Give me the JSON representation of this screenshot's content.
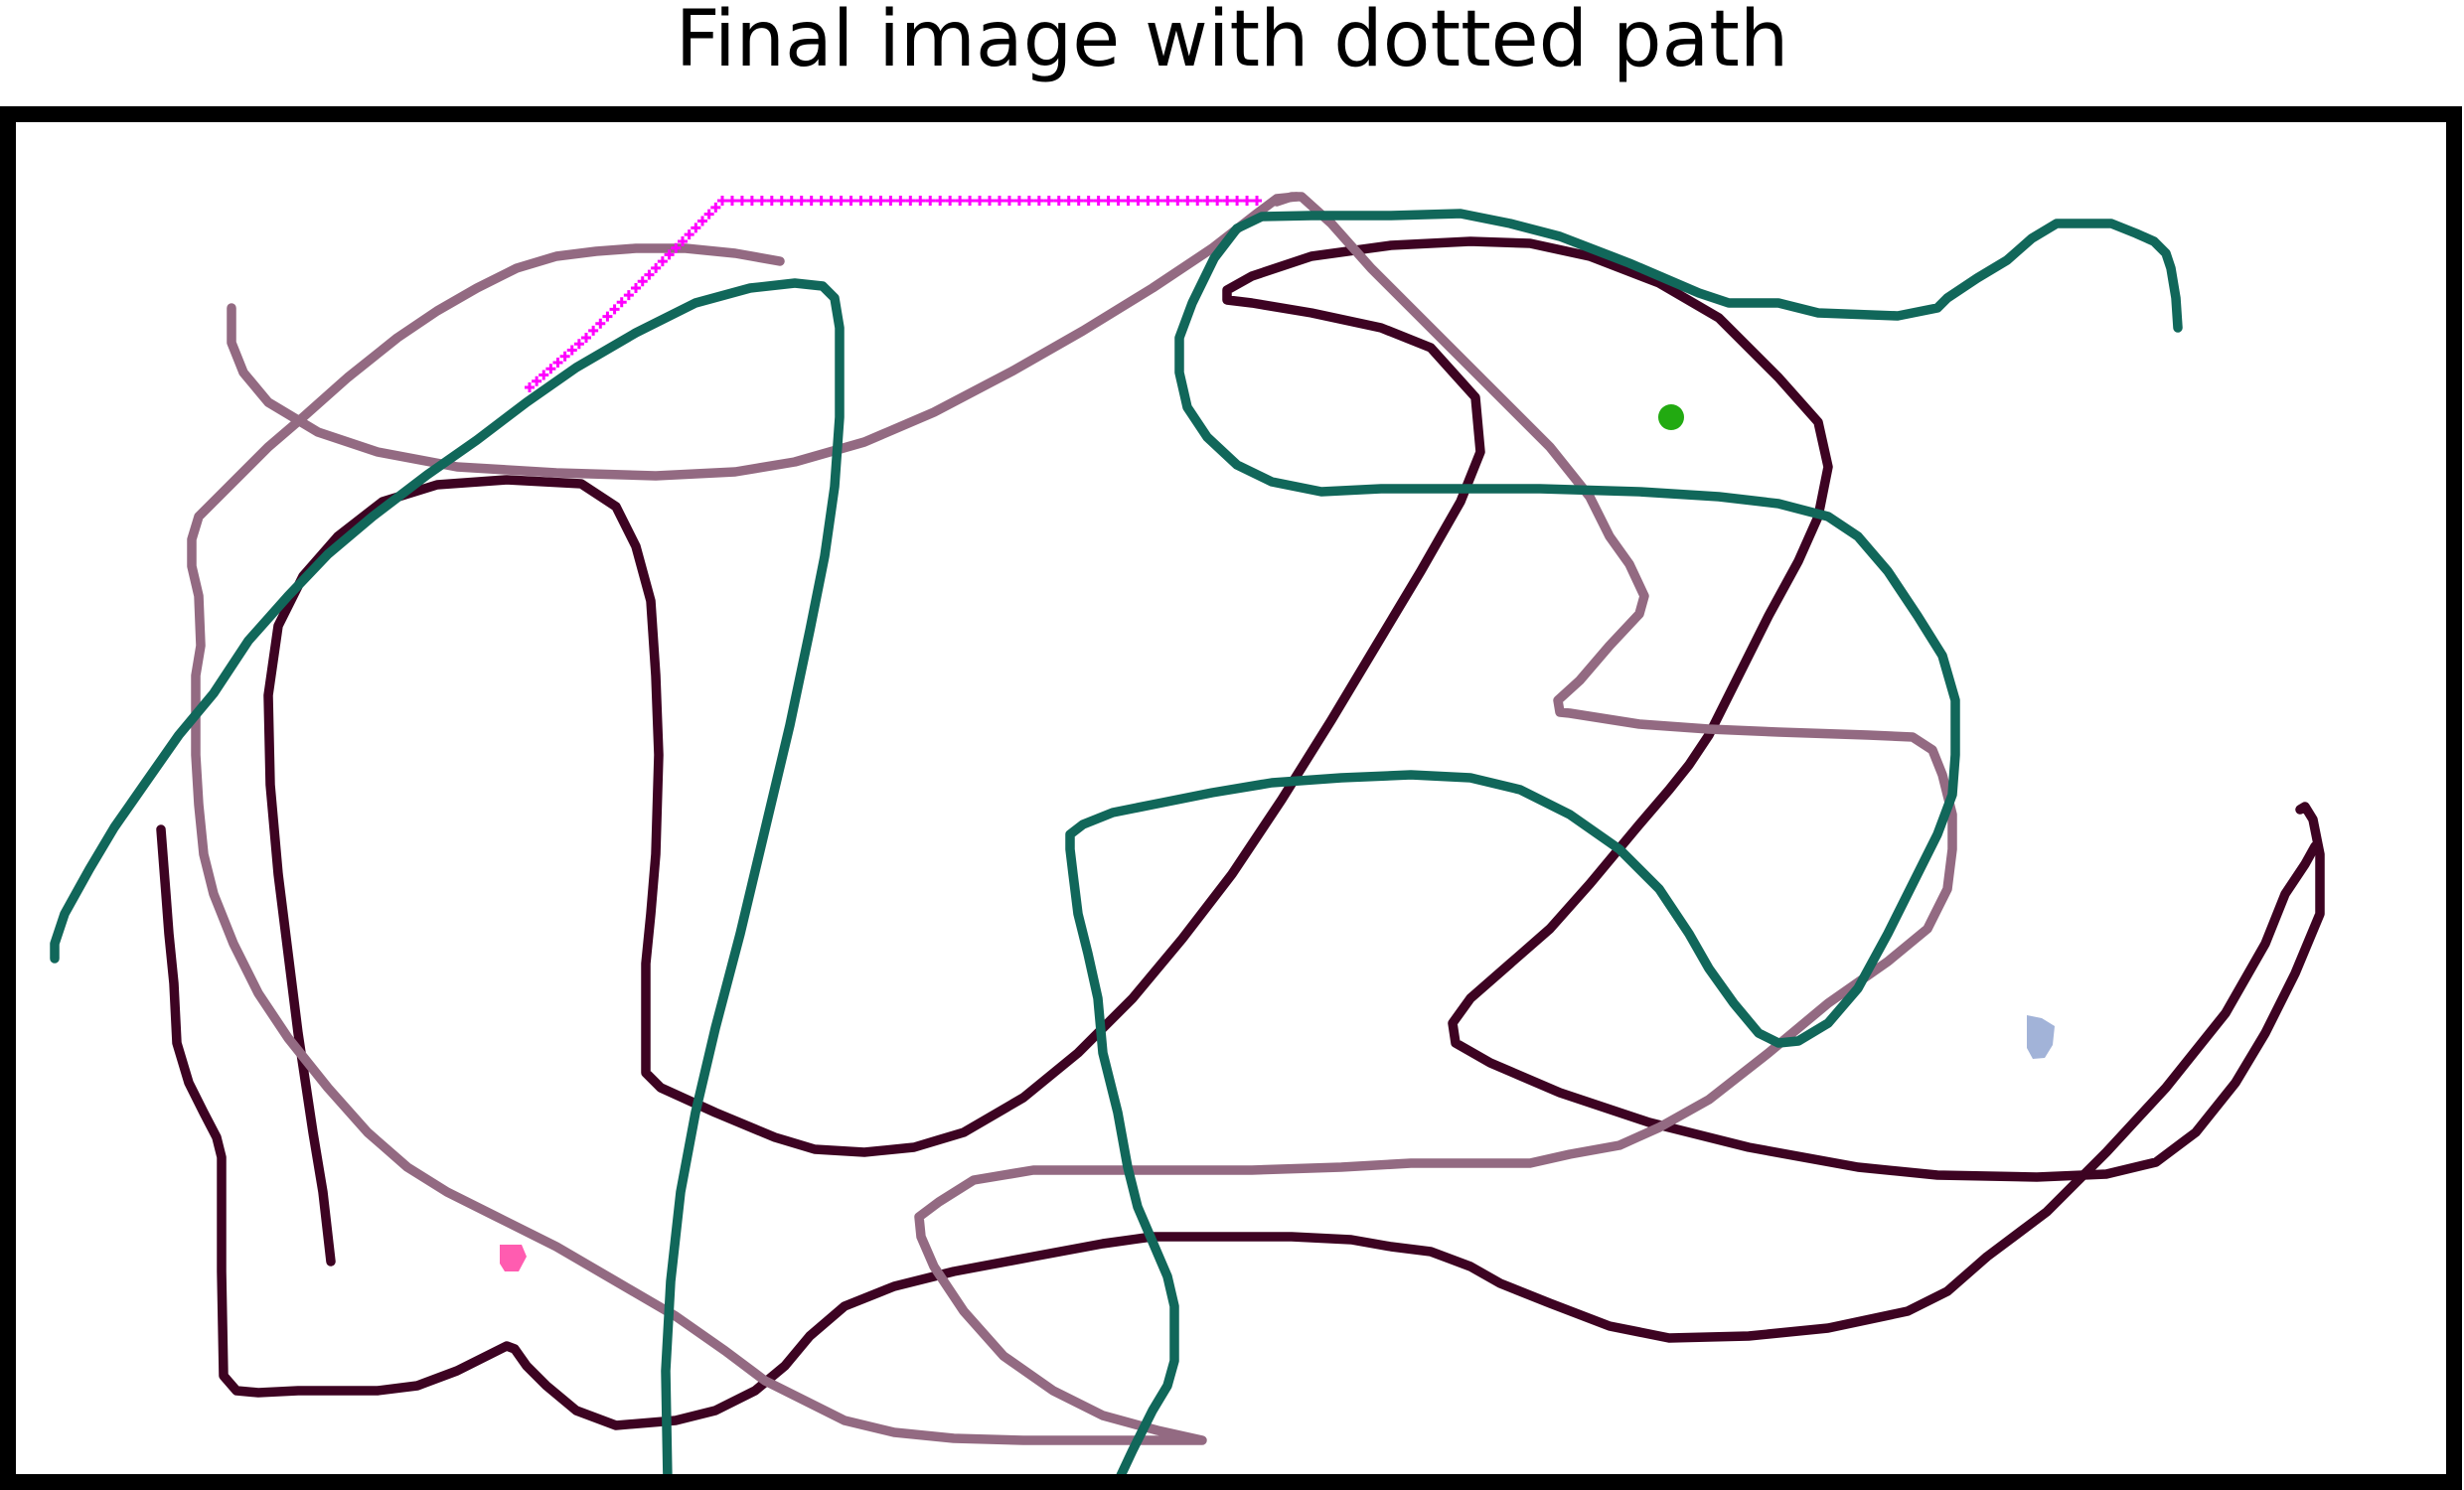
{
  "title": "Final image with dotted path",
  "colors": {
    "frame": "#000000",
    "background": "#ffffff",
    "dark_stroke": "#3d0322",
    "mauve_stroke": "#936a82",
    "teal_stroke": "#11675a",
    "dotted_path": "#ff00ff",
    "green_dot": "#22aa11",
    "pink_mark": "#ff5cb0",
    "blue_mark": "#a2b3d8"
  }
}
